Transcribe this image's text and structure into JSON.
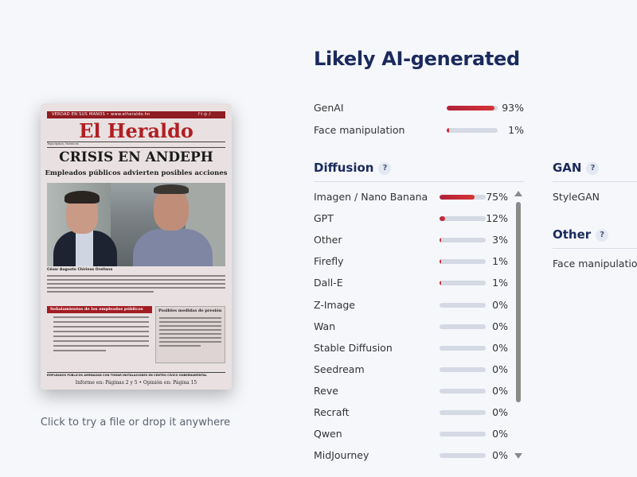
{
  "newspaper": {
    "topbar_text": "VERDAD EN SUS MANOS • www.elheraldo.hn",
    "topbar_social": "f  t  ◎  ♪",
    "masthead": "El Heraldo",
    "meta": "Tegucigalpa, Honduras",
    "headline": "CRISIS EN ANDEPH",
    "subheadline": "Empleados públicos advierten posibles acciones",
    "caption": "César Augusto Chirinos Orellana",
    "box_left_title": "Señalamientos de los empleados públicos",
    "box_right_title": "Posibles medidas de presión",
    "footer": "EMPLEADOS PÚBLICOS AMENAZAN CON TOMAR INSTALACIONES EN CENTRO CÍVICO GUBERNAMENTAL",
    "footer2": "Informe en: Páginas 2 y 5 • Opinión en: Página 15"
  },
  "upload": {
    "hint": "Click to try a file or drop it anywhere"
  },
  "result": {
    "title": "Likely AI-generated",
    "summary": [
      {
        "label": "GenAI",
        "percent": 93,
        "display": "93%"
      },
      {
        "label": "Face manipulation",
        "percent": 1,
        "display": "1%"
      }
    ]
  },
  "diffusion": {
    "title": "Diffusion",
    "help": "?",
    "items": [
      {
        "label": "Imagen / Nano Banana",
        "percent": 75,
        "display": "75%"
      },
      {
        "label": "GPT",
        "percent": 12,
        "display": "12%"
      },
      {
        "label": "Other",
        "percent": 3,
        "display": "3%"
      },
      {
        "label": "Firefly",
        "percent": 1,
        "display": "1%"
      },
      {
        "label": "Dall-E",
        "percent": 1,
        "display": "1%"
      },
      {
        "label": "Z-Image",
        "percent": 0,
        "display": "0%"
      },
      {
        "label": "Wan",
        "percent": 0,
        "display": "0%"
      },
      {
        "label": "Stable Diffusion",
        "percent": 0,
        "display": "0%"
      },
      {
        "label": "Seedream",
        "percent": 0,
        "display": "0%"
      },
      {
        "label": "Reve",
        "percent": 0,
        "display": "0%"
      },
      {
        "label": "Recraft",
        "percent": 0,
        "display": "0%"
      },
      {
        "label": "Qwen",
        "percent": 0,
        "display": "0%"
      },
      {
        "label": "MidJourney",
        "percent": 0,
        "display": "0%"
      }
    ]
  },
  "gan": {
    "title": "GAN",
    "help": "?",
    "items": [
      {
        "label": "StyleGAN"
      }
    ]
  },
  "other": {
    "title": "Other",
    "help": "?",
    "items": [
      {
        "label": "Face manipulation"
      }
    ]
  },
  "colors": {
    "title": "#1b2a5c",
    "bar_track": "#d4d9e3",
    "bar_fill": "#c0263a"
  }
}
